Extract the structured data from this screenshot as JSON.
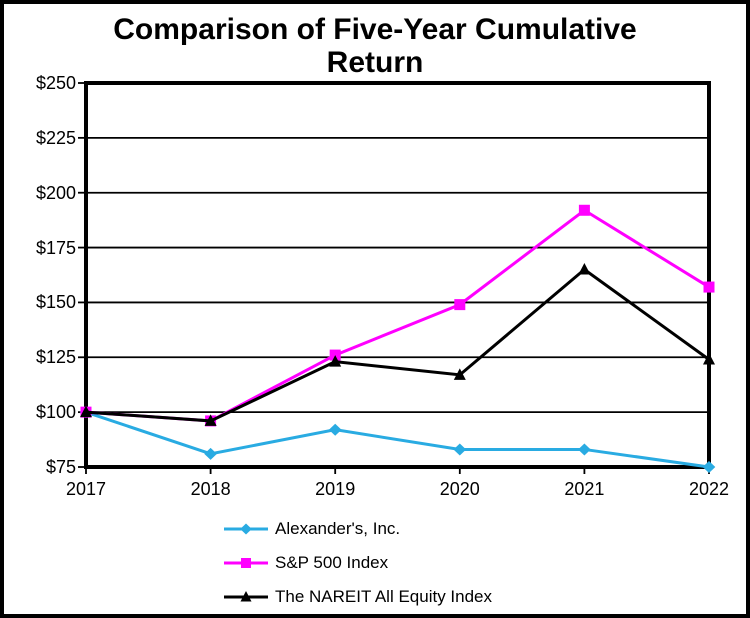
{
  "title": "Comparison of Five-Year Cumulative Return",
  "axes": {
    "y_ticks": [
      "$250",
      "$225",
      "$200",
      "$175",
      "$150",
      "$125",
      "$100",
      "$75"
    ],
    "x_ticks": [
      "2017",
      "2018",
      "2019",
      "2020",
      "2021",
      "2022"
    ]
  },
  "colors": {
    "alexanders": "#29ABE2",
    "sp500": "#FF00FF",
    "nareit": "#000000",
    "grid": "#000000",
    "background": "#FFFFFF"
  },
  "chart_data": {
    "type": "line",
    "title": "Comparison of Five-Year Cumulative Return",
    "x": [
      2017,
      2018,
      2019,
      2020,
      2021,
      2022
    ],
    "series": [
      {
        "name": "Alexander's, Inc.",
        "values": [
          100,
          81,
          92,
          83,
          83,
          75
        ],
        "color": "#29ABE2",
        "marker": "diamond"
      },
      {
        "name": "S&P 500 Index",
        "values": [
          100,
          96,
          126,
          149,
          192,
          157
        ],
        "color": "#FF00FF",
        "marker": "square"
      },
      {
        "name": "The NAREIT All Equity Index",
        "values": [
          100,
          96,
          123,
          117,
          165,
          124
        ],
        "color": "#000000",
        "marker": "triangle"
      }
    ],
    "ylim": [
      75,
      250
    ],
    "y_tick_step": 25,
    "y_tick_format": "$",
    "grid": "horizontal",
    "legend_position": "bottom"
  }
}
